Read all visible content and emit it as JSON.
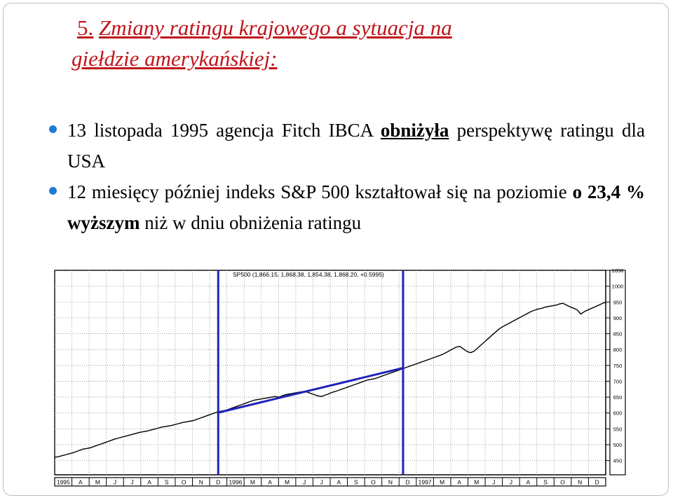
{
  "slide": {
    "title_num": "5.",
    "title_line1": "Zmiany ratingu krajowego a sytuacja na",
    "title_line2": "giełdzie amerykańskiej:",
    "bullet1_a": "13 listopada 1995 agencja Fitch IBCA",
    "bullet1_b": "obniżyła",
    "bullet1_c": "perspektywę ratingu dla USA",
    "bullet2_a": "12 miesięcy później indeks S&P 500 kształtował się na poziomie",
    "bullet2_b": "o 23,4 % wyższym",
    "bullet2_c": "niż w dniu obniżenia ratingu"
  },
  "chart_data": {
    "type": "line",
    "header": "SP500 (1,866.15, 1,868.38, 1,854.38, 1,868.20, +0.5995)",
    "ylim": [
      405,
      1050
    ],
    "y_ticks": [
      1050,
      1000,
      950,
      900,
      850,
      800,
      750,
      700,
      650,
      600,
      550,
      500,
      450
    ],
    "x_ticks": [
      "1995",
      "A",
      "M",
      "J",
      "J",
      "A",
      "S",
      "O",
      "N",
      "D",
      "1996",
      "M",
      "A",
      "M",
      "J",
      "J",
      "A",
      "S",
      "O",
      "N",
      "D",
      "1997",
      "M",
      "A",
      "M",
      "J",
      "J",
      "A",
      "S",
      "O",
      "N",
      "D"
    ],
    "x": [
      0,
      1,
      2,
      3,
      4,
      5,
      6,
      7,
      8,
      9,
      10,
      11,
      12,
      13,
      14,
      15,
      16,
      17,
      18,
      19,
      20,
      21,
      22,
      23,
      24,
      25,
      26,
      27,
      28,
      29,
      30,
      31,
      32,
      33,
      34,
      35,
      36,
      37,
      38,
      39,
      40,
      41,
      42,
      43,
      44,
      45,
      46,
      47,
      48,
      49,
      50,
      51,
      52,
      53,
      54,
      55,
      56,
      57,
      58,
      59,
      60,
      61,
      62,
      63,
      64,
      65,
      66,
      67,
      68,
      69,
      70,
      71,
      72,
      73,
      74,
      75,
      76,
      77,
      78,
      79,
      80,
      81,
      82,
      83,
      84,
      85,
      86,
      87,
      88,
      89,
      90,
      91,
      92,
      93,
      94,
      95,
      96,
      97,
      98,
      99,
      100,
      101,
      102,
      103,
      104,
      105,
      106,
      107,
      108,
      109,
      110,
      111,
      112,
      113,
      114,
      115,
      116,
      117,
      118,
      119,
      120,
      121,
      122,
      123,
      124,
      125,
      126,
      127,
      128,
      129,
      130,
      131,
      132,
      133,
      134,
      135,
      136,
      137,
      138,
      139,
      140,
      141,
      142,
      143,
      144,
      145,
      146,
      147,
      148,
      149,
      150,
      151,
      152,
      153,
      154,
      155
    ],
    "series": [
      {
        "values": [
          460,
          462,
          465,
          468,
          471,
          474,
          478,
          482,
          486,
          488,
          490,
          494,
          498,
          502,
          506,
          510,
          514,
          518,
          521,
          524,
          527,
          530,
          533,
          536,
          539,
          541,
          543,
          546,
          549,
          552,
          555,
          557,
          559,
          561,
          564,
          567,
          570,
          572,
          574,
          576,
          580,
          584,
          588,
          592,
          596,
          600,
          604,
          606,
          608,
          612,
          616,
          620,
          624,
          628,
          632,
          636,
          640,
          642,
          644,
          646,
          648,
          650,
          652,
          650,
          654,
          658,
          660,
          662,
          664,
          666,
          668,
          666,
          662,
          658,
          654,
          652,
          656,
          660,
          665,
          668,
          672,
          676,
          680,
          684,
          688,
          692,
          696,
          700,
          704,
          706,
          708,
          712,
          716,
          720,
          724,
          728,
          732,
          736,
          740,
          744,
          748,
          752,
          756,
          760,
          764,
          768,
          772,
          776,
          780,
          784,
          790,
          796,
          802,
          808,
          810,
          802,
          794,
          790,
          795,
          805,
          815,
          825,
          835,
          845,
          855,
          865,
          872,
          878,
          884,
          890,
          896,
          902,
          908,
          914,
          920,
          924,
          928,
          930,
          934,
          936,
          938,
          940,
          944,
          946,
          940,
          935,
          930,
          925,
          912,
          920,
          925,
          930,
          935,
          940,
          945,
          950
        ]
      }
    ],
    "vertical_markers_x": [
      46,
      98
    ],
    "trendline": {
      "x": [
        46,
        98
      ],
      "y": [
        601,
        742
      ]
    }
  }
}
